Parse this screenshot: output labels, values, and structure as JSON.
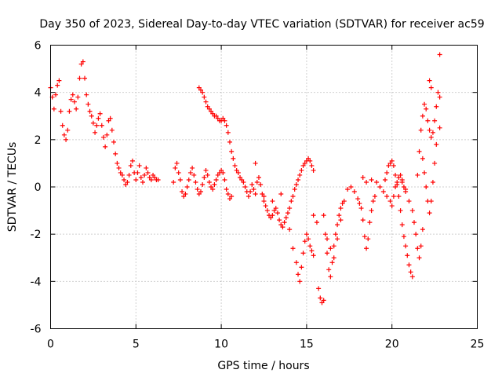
{
  "chart_data": {
    "type": "scatter",
    "title": "Day 350 of 2023, Sidereal Day-to-day VTEC variation (SDTVAR) for receiver ac59",
    "xlabel": "GPS time / hours",
    "ylabel": "SDTVAR / TECUs",
    "xlim": [
      0,
      25
    ],
    "ylim": [
      -6,
      6
    ],
    "xticks": [
      "0",
      "5",
      "10",
      "15",
      "20",
      "25"
    ],
    "yticks": [
      "-6",
      "-4",
      "-2",
      "0",
      "2",
      "4",
      "6"
    ],
    "grid": true,
    "marker": "plus",
    "color": "#ff0000",
    "series": [
      {
        "name": "SDTVAR",
        "points": [
          [
            0.0,
            4.2
          ],
          [
            0.1,
            3.8
          ],
          [
            0.2,
            3.3
          ],
          [
            0.3,
            3.9
          ],
          [
            0.4,
            4.3
          ],
          [
            0.5,
            4.5
          ],
          [
            0.6,
            3.2
          ],
          [
            0.7,
            2.6
          ],
          [
            0.8,
            2.2
          ],
          [
            0.9,
            2.0
          ],
          [
            1.0,
            2.4
          ],
          [
            1.1,
            3.2
          ],
          [
            1.2,
            3.7
          ],
          [
            1.3,
            3.9
          ],
          [
            1.4,
            3.6
          ],
          [
            1.5,
            3.3
          ],
          [
            1.6,
            3.8
          ],
          [
            1.7,
            4.6
          ],
          [
            1.8,
            5.2
          ],
          [
            1.9,
            5.3
          ],
          [
            2.0,
            4.6
          ],
          [
            2.1,
            3.9
          ],
          [
            2.2,
            3.5
          ],
          [
            2.3,
            3.2
          ],
          [
            2.4,
            3.0
          ],
          [
            2.5,
            2.7
          ],
          [
            2.6,
            2.3
          ],
          [
            2.7,
            2.6
          ],
          [
            2.8,
            2.9
          ],
          [
            2.9,
            3.1
          ],
          [
            3.0,
            2.6
          ],
          [
            3.1,
            2.1
          ],
          [
            3.2,
            1.7
          ],
          [
            3.3,
            2.2
          ],
          [
            3.4,
            2.8
          ],
          [
            3.5,
            2.9
          ],
          [
            3.6,
            2.4
          ],
          [
            3.7,
            1.9
          ],
          [
            3.8,
            1.4
          ],
          [
            3.9,
            1.0
          ],
          [
            4.0,
            0.8
          ],
          [
            4.1,
            0.6
          ],
          [
            4.2,
            0.5
          ],
          [
            4.3,
            0.3
          ],
          [
            4.4,
            0.1
          ],
          [
            4.5,
            0.2
          ],
          [
            4.6,
            0.5
          ],
          [
            4.7,
            0.9
          ],
          [
            4.8,
            1.1
          ],
          [
            4.9,
            0.6
          ],
          [
            5.0,
            0.3
          ],
          [
            5.1,
            0.6
          ],
          [
            5.2,
            0.9
          ],
          [
            5.3,
            0.4
          ],
          [
            5.4,
            0.2
          ],
          [
            5.5,
            0.5
          ],
          [
            5.6,
            0.8
          ],
          [
            5.7,
            0.6
          ],
          [
            5.8,
            0.4
          ],
          [
            5.9,
            0.3
          ],
          [
            6.0,
            0.5
          ],
          [
            6.1,
            0.4
          ],
          [
            6.2,
            0.3
          ],
          [
            6.3,
            0.3
          ],
          [
            7.2,
            0.2
          ],
          [
            7.3,
            0.8
          ],
          [
            7.4,
            1.0
          ],
          [
            7.5,
            0.6
          ],
          [
            7.6,
            0.3
          ],
          [
            7.7,
            -0.2
          ],
          [
            7.8,
            -0.4
          ],
          [
            7.9,
            -0.3
          ],
          [
            8.0,
            0.0
          ],
          [
            8.1,
            0.3
          ],
          [
            8.2,
            0.6
          ],
          [
            8.3,
            0.8
          ],
          [
            8.4,
            0.5
          ],
          [
            8.5,
            0.2
          ],
          [
            8.6,
            -0.1
          ],
          [
            8.7,
            -0.3
          ],
          [
            8.8,
            -0.2
          ],
          [
            8.9,
            0.1
          ],
          [
            9.0,
            0.4
          ],
          [
            9.1,
            0.7
          ],
          [
            9.2,
            0.5
          ],
          [
            9.3,
            0.2
          ],
          [
            9.4,
            0.0
          ],
          [
            9.5,
            -0.1
          ],
          [
            9.6,
            0.1
          ],
          [
            9.7,
            0.3
          ],
          [
            9.8,
            0.5
          ],
          [
            9.9,
            0.6
          ],
          [
            10.0,
            0.7
          ],
          [
            10.1,
            0.6
          ],
          [
            10.2,
            0.3
          ],
          [
            10.3,
            -0.1
          ],
          [
            10.4,
            -0.3
          ],
          [
            10.5,
            -0.5
          ],
          [
            10.6,
            -0.4
          ],
          [
            8.7,
            4.2
          ],
          [
            8.8,
            4.1
          ],
          [
            8.9,
            4.0
          ],
          [
            9.0,
            3.8
          ],
          [
            9.1,
            3.6
          ],
          [
            9.2,
            3.4
          ],
          [
            9.3,
            3.3
          ],
          [
            9.4,
            3.2
          ],
          [
            9.5,
            3.1
          ],
          [
            9.6,
            3.0
          ],
          [
            9.7,
            3.0
          ],
          [
            9.8,
            2.9
          ],
          [
            9.9,
            2.8
          ],
          [
            10.0,
            2.8
          ],
          [
            10.1,
            2.9
          ],
          [
            10.2,
            2.8
          ],
          [
            10.3,
            2.6
          ],
          [
            10.4,
            2.3
          ],
          [
            10.5,
            1.9
          ],
          [
            10.6,
            1.5
          ],
          [
            10.7,
            1.2
          ],
          [
            10.8,
            0.9
          ],
          [
            10.9,
            0.7
          ],
          [
            11.0,
            0.6
          ],
          [
            11.1,
            0.4
          ],
          [
            11.2,
            0.3
          ],
          [
            11.3,
            0.2
          ],
          [
            11.4,
            0.0
          ],
          [
            11.5,
            -0.2
          ],
          [
            11.6,
            -0.4
          ],
          [
            11.7,
            -0.2
          ],
          [
            11.8,
            0.1
          ],
          [
            11.9,
            -0.1
          ],
          [
            12.0,
            -0.3
          ],
          [
            12.1,
            0.2
          ],
          [
            12.2,
            0.4
          ],
          [
            12.3,
            0.1
          ],
          [
            12.4,
            -0.3
          ],
          [
            12.5,
            -0.6
          ],
          [
            12.6,
            -0.8
          ],
          [
            12.7,
            -1.0
          ],
          [
            12.8,
            -1.2
          ],
          [
            12.9,
            -1.3
          ],
          [
            13.0,
            -1.2
          ],
          [
            13.1,
            -1.0
          ],
          [
            13.2,
            -0.9
          ],
          [
            13.3,
            -1.1
          ],
          [
            13.4,
            -1.4
          ],
          [
            13.5,
            -1.6
          ],
          [
            13.6,
            -1.7
          ],
          [
            13.7,
            -1.5
          ],
          [
            13.8,
            -1.3
          ],
          [
            13.9,
            -1.1
          ],
          [
            14.0,
            -0.9
          ],
          [
            14.1,
            -0.6
          ],
          [
            14.2,
            -0.4
          ],
          [
            14.3,
            -0.1
          ],
          [
            14.4,
            0.1
          ],
          [
            14.5,
            0.3
          ],
          [
            14.6,
            0.5
          ],
          [
            14.7,
            0.7
          ],
          [
            14.8,
            0.9
          ],
          [
            14.9,
            1.0
          ],
          [
            15.0,
            1.1
          ],
          [
            15.1,
            1.2
          ],
          [
            15.2,
            1.1
          ],
          [
            15.3,
            0.9
          ],
          [
            15.4,
            0.7
          ],
          [
            12.0,
            1.0
          ],
          [
            12.5,
            -0.4
          ],
          [
            13.0,
            -0.6
          ],
          [
            13.5,
            -0.3
          ],
          [
            14.0,
            -1.8
          ],
          [
            14.2,
            -2.6
          ],
          [
            14.4,
            -3.2
          ],
          [
            14.5,
            -3.7
          ],
          [
            14.6,
            -4.0
          ],
          [
            14.7,
            -3.4
          ],
          [
            14.8,
            -2.8
          ],
          [
            14.9,
            -2.3
          ],
          [
            15.0,
            -2.0
          ],
          [
            15.1,
            -2.2
          ],
          [
            15.2,
            -2.5
          ],
          [
            15.3,
            -2.7
          ],
          [
            15.4,
            -2.9
          ],
          [
            15.7,
            -4.3
          ],
          [
            15.8,
            -4.7
          ],
          [
            15.9,
            -4.9
          ],
          [
            16.0,
            -4.8
          ],
          [
            15.4,
            -1.2
          ],
          [
            15.6,
            -1.5
          ],
          [
            16.0,
            -1.2
          ],
          [
            16.1,
            -2.0
          ],
          [
            16.2,
            -2.8
          ],
          [
            16.3,
            -3.5
          ],
          [
            16.4,
            -3.8
          ],
          [
            16.5,
            -3.2
          ],
          [
            16.6,
            -2.5
          ],
          [
            16.7,
            -2.0
          ],
          [
            16.8,
            -1.6
          ],
          [
            16.9,
            -1.2
          ],
          [
            17.0,
            -0.9
          ],
          [
            17.1,
            -0.7
          ],
          [
            16.2,
            -2.2
          ],
          [
            16.4,
            -2.6
          ],
          [
            16.6,
            -3.0
          ],
          [
            16.8,
            -2.2
          ],
          [
            17.0,
            -1.4
          ],
          [
            17.2,
            -0.6
          ],
          [
            17.4,
            -0.1
          ],
          [
            17.6,
            0.0
          ],
          [
            17.8,
            -0.2
          ],
          [
            18.0,
            -0.5
          ],
          [
            18.1,
            -0.7
          ],
          [
            18.2,
            -0.9
          ],
          [
            18.3,
            -1.4
          ],
          [
            18.4,
            -2.1
          ],
          [
            18.5,
            -2.6
          ],
          [
            18.6,
            -2.2
          ],
          [
            18.7,
            -1.5
          ],
          [
            18.8,
            -1.0
          ],
          [
            18.9,
            -0.6
          ],
          [
            19.0,
            -0.4
          ],
          [
            18.3,
            0.4
          ],
          [
            18.5,
            0.2
          ],
          [
            18.8,
            0.3
          ],
          [
            19.1,
            0.2
          ],
          [
            19.3,
            0.0
          ],
          [
            19.5,
            -0.2
          ],
          [
            19.7,
            -0.4
          ],
          [
            19.9,
            -0.6
          ],
          [
            20.0,
            -0.8
          ],
          [
            20.1,
            -0.4
          ],
          [
            20.2,
            0.0
          ],
          [
            20.3,
            0.2
          ],
          [
            20.4,
            0.4
          ],
          [
            20.5,
            0.5
          ],
          [
            20.6,
            0.2
          ],
          [
            20.7,
            0.0
          ],
          [
            20.8,
            -0.1
          ],
          [
            19.6,
            0.3
          ],
          [
            19.7,
            0.6
          ],
          [
            19.8,
            0.9
          ],
          [
            19.9,
            1.0
          ],
          [
            20.0,
            1.1
          ],
          [
            20.1,
            0.9
          ],
          [
            20.2,
            0.5
          ],
          [
            20.3,
            0.1
          ],
          [
            20.4,
            -0.4
          ],
          [
            20.5,
            -1.0
          ],
          [
            20.6,
            -1.6
          ],
          [
            20.7,
            -2.1
          ],
          [
            20.8,
            -2.5
          ],
          [
            20.9,
            -2.9
          ],
          [
            21.0,
            -3.3
          ],
          [
            21.1,
            -3.6
          ],
          [
            21.2,
            -3.8
          ],
          [
            20.6,
            0.3
          ],
          [
            20.8,
            -0.2
          ],
          [
            21.0,
            -0.6
          ],
          [
            21.2,
            -1.0
          ],
          [
            21.3,
            -1.5
          ],
          [
            21.4,
            -2.0
          ],
          [
            21.5,
            -2.6
          ],
          [
            21.6,
            -3.0
          ],
          [
            21.7,
            -2.5
          ],
          [
            21.8,
            -1.8
          ],
          [
            21.5,
            0.5
          ],
          [
            21.6,
            1.5
          ],
          [
            21.7,
            2.4
          ],
          [
            21.8,
            3.0
          ],
          [
            21.9,
            3.5
          ],
          [
            22.0,
            3.3
          ],
          [
            22.1,
            2.8
          ],
          [
            22.2,
            2.4
          ],
          [
            22.3,
            2.1
          ],
          [
            22.4,
            2.3
          ],
          [
            22.5,
            2.8
          ],
          [
            22.6,
            3.4
          ],
          [
            22.7,
            4.0
          ],
          [
            22.8,
            3.8
          ],
          [
            22.8,
            2.5
          ],
          [
            22.8,
            5.6
          ],
          [
            22.3,
            4.2
          ],
          [
            22.2,
            4.5
          ],
          [
            21.8,
            1.2
          ],
          [
            21.9,
            0.6
          ],
          [
            22.0,
            0.0
          ],
          [
            22.1,
            -0.6
          ],
          [
            22.2,
            -1.1
          ],
          [
            22.3,
            -0.6
          ],
          [
            22.4,
            0.2
          ],
          [
            22.5,
            1.0
          ],
          [
            22.6,
            1.8
          ]
        ]
      }
    ]
  }
}
